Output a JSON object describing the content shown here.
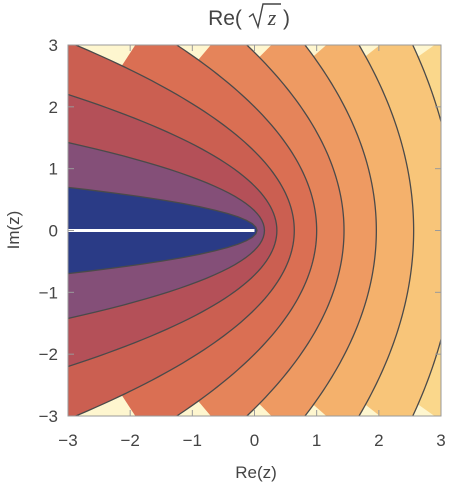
{
  "chart_data": {
    "type": "heatmap",
    "subtype": "contour",
    "title": {
      "prefix": "Re(",
      "variable": "z",
      "suffix": ")"
    },
    "xlabel": "Re(z)",
    "ylabel": "Im(z)",
    "xlim": [
      -3,
      3
    ],
    "ylim": [
      -3,
      3
    ],
    "xticks": [
      -3,
      -2,
      -1,
      0,
      1,
      2,
      3
    ],
    "yticks": [
      -3,
      -2,
      -1,
      0,
      1,
      2,
      3
    ],
    "xtick_labels": [
      "−3",
      "−2",
      "−1",
      "0",
      "1",
      "2",
      "3"
    ],
    "ytick_labels": [
      "−3",
      "−2",
      "−1",
      "0",
      "1",
      "2",
      "3"
    ],
    "function": "Re(sqrt(z))",
    "contour_levels": [
      0.2,
      0.4,
      0.6,
      0.8,
      1.0,
      1.2,
      1.4,
      1.6,
      1.8,
      2.0,
      2.2
    ],
    "band_colors": [
      "#2a3b86",
      "#844f78",
      "#b45058",
      "#cb5f51",
      "#da6f53",
      "#e5845a",
      "#ee9a62",
      "#f4b16c",
      "#f8c579",
      "#fad78b",
      "#fce6a3",
      "#fef6cf"
    ],
    "branch_cut": {
      "from": [
        -3,
        0
      ],
      "to": [
        0,
        0
      ],
      "color": "#ffffff"
    },
    "contour_line_color": "#4a4a4a",
    "grid": false
  }
}
